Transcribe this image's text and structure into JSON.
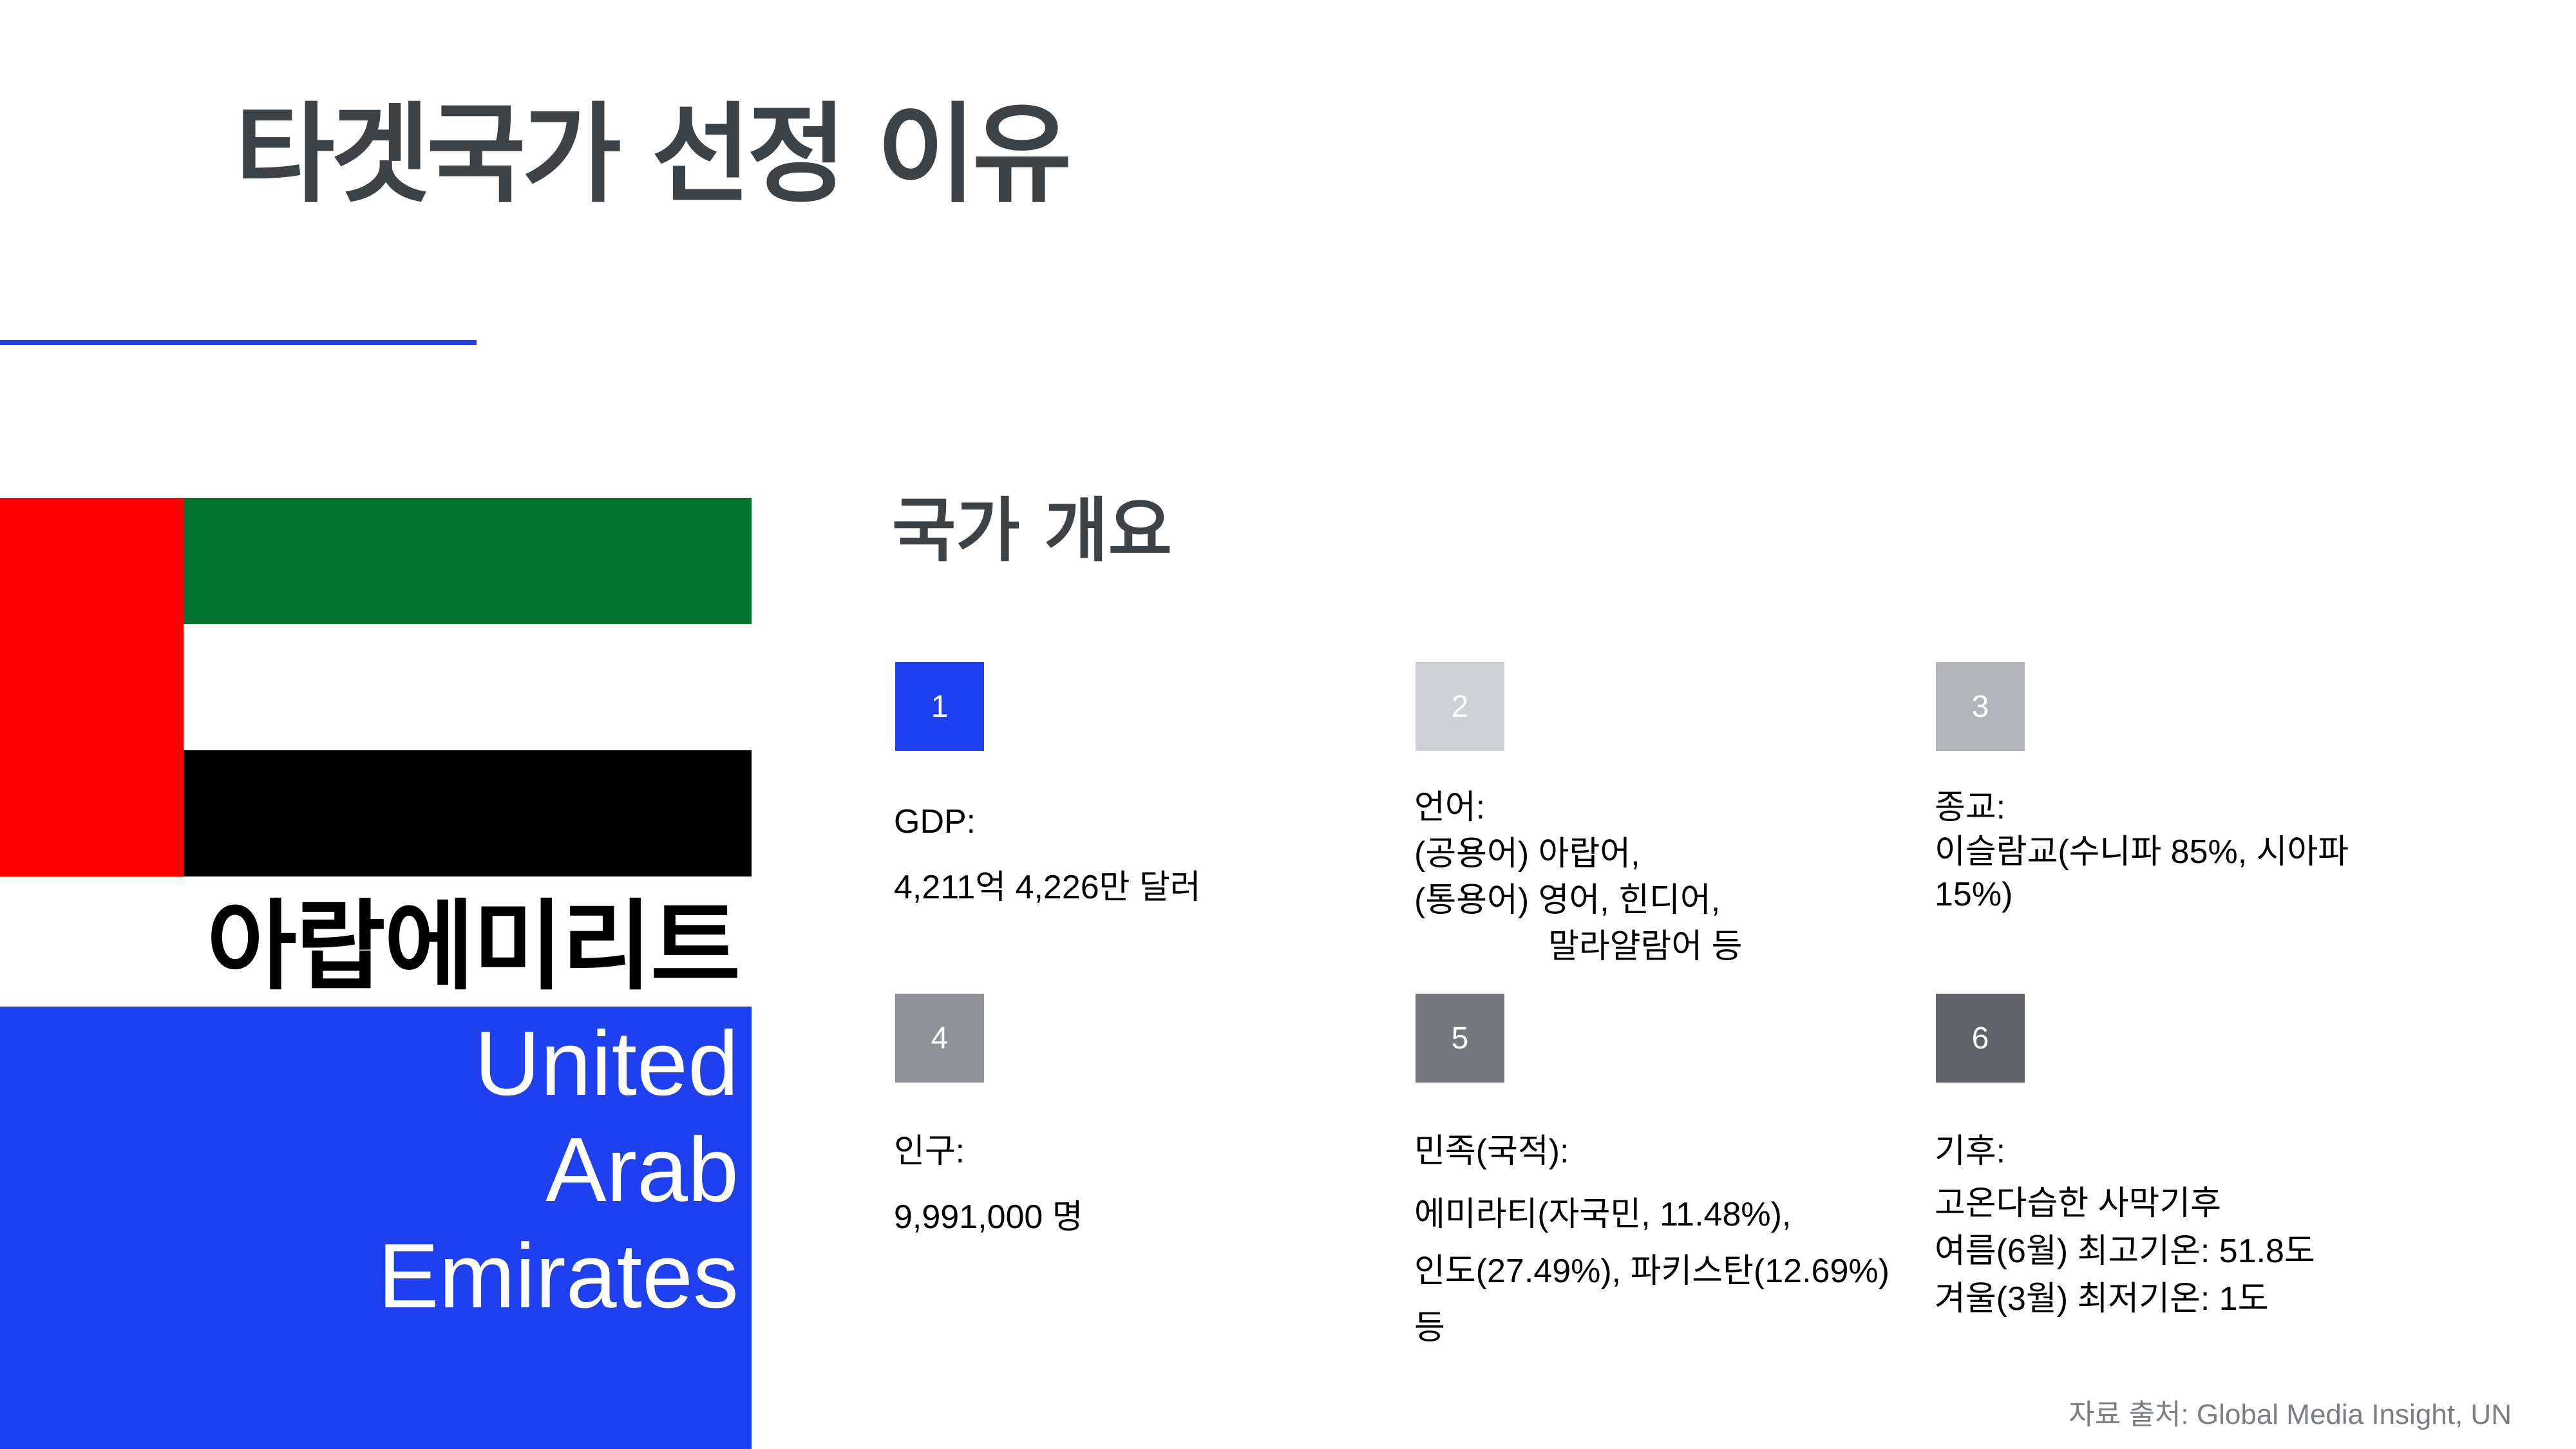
{
  "title": "타겟국가 선정 이유",
  "country": {
    "name_ko": "아랍에미리트",
    "name_en_lines": [
      "United",
      "Arab",
      "Emirates"
    ]
  },
  "flag": {
    "colors": {
      "red": "#ff0000",
      "green": "#00732f",
      "white": "#ffffff",
      "black": "#000000"
    }
  },
  "section_title": "국가 개요",
  "cards": [
    {
      "number": "1",
      "box_color": "#1e40ef",
      "lines": [
        "GDP:",
        "4,211억 4,226만 달러"
      ]
    },
    {
      "number": "2",
      "box_color": "#cdd0d4",
      "lines": [
        "언어:",
        "(공용어) 아랍어,",
        "(통용어) 영어, 힌디어,",
        "말라얄람어 등"
      ]
    },
    {
      "number": "3",
      "box_color": "#b2b6ba",
      "lines": [
        "종교:",
        "이슬람교(수니파 85%, 시아파",
        "15%)"
      ]
    },
    {
      "number": "4",
      "box_color": "#8e9297",
      "lines": [
        "인구:",
        "9,991,000 명"
      ]
    },
    {
      "number": "5",
      "box_color": "#75797e",
      "lines": [
        "민족(국적):",
        "에미라티(자국민, 11.48%),",
        "인도(27.49%), 파키스탄(12.69%)",
        "등"
      ]
    },
    {
      "number": "6",
      "box_color": "#5f6368",
      "lines": [
        "기후:",
        "고온다습한 사막기후",
        "여름(6월) 최고기온: 51.8도",
        "겨울(3월) 최저기온: 1도"
      ]
    }
  ],
  "source": "자료 출처: Global Media Insight, UN",
  "colors": {
    "accent_blue": "#1e40ef",
    "title_gray": "#3d4246",
    "source_gray": "#7a7f85"
  }
}
